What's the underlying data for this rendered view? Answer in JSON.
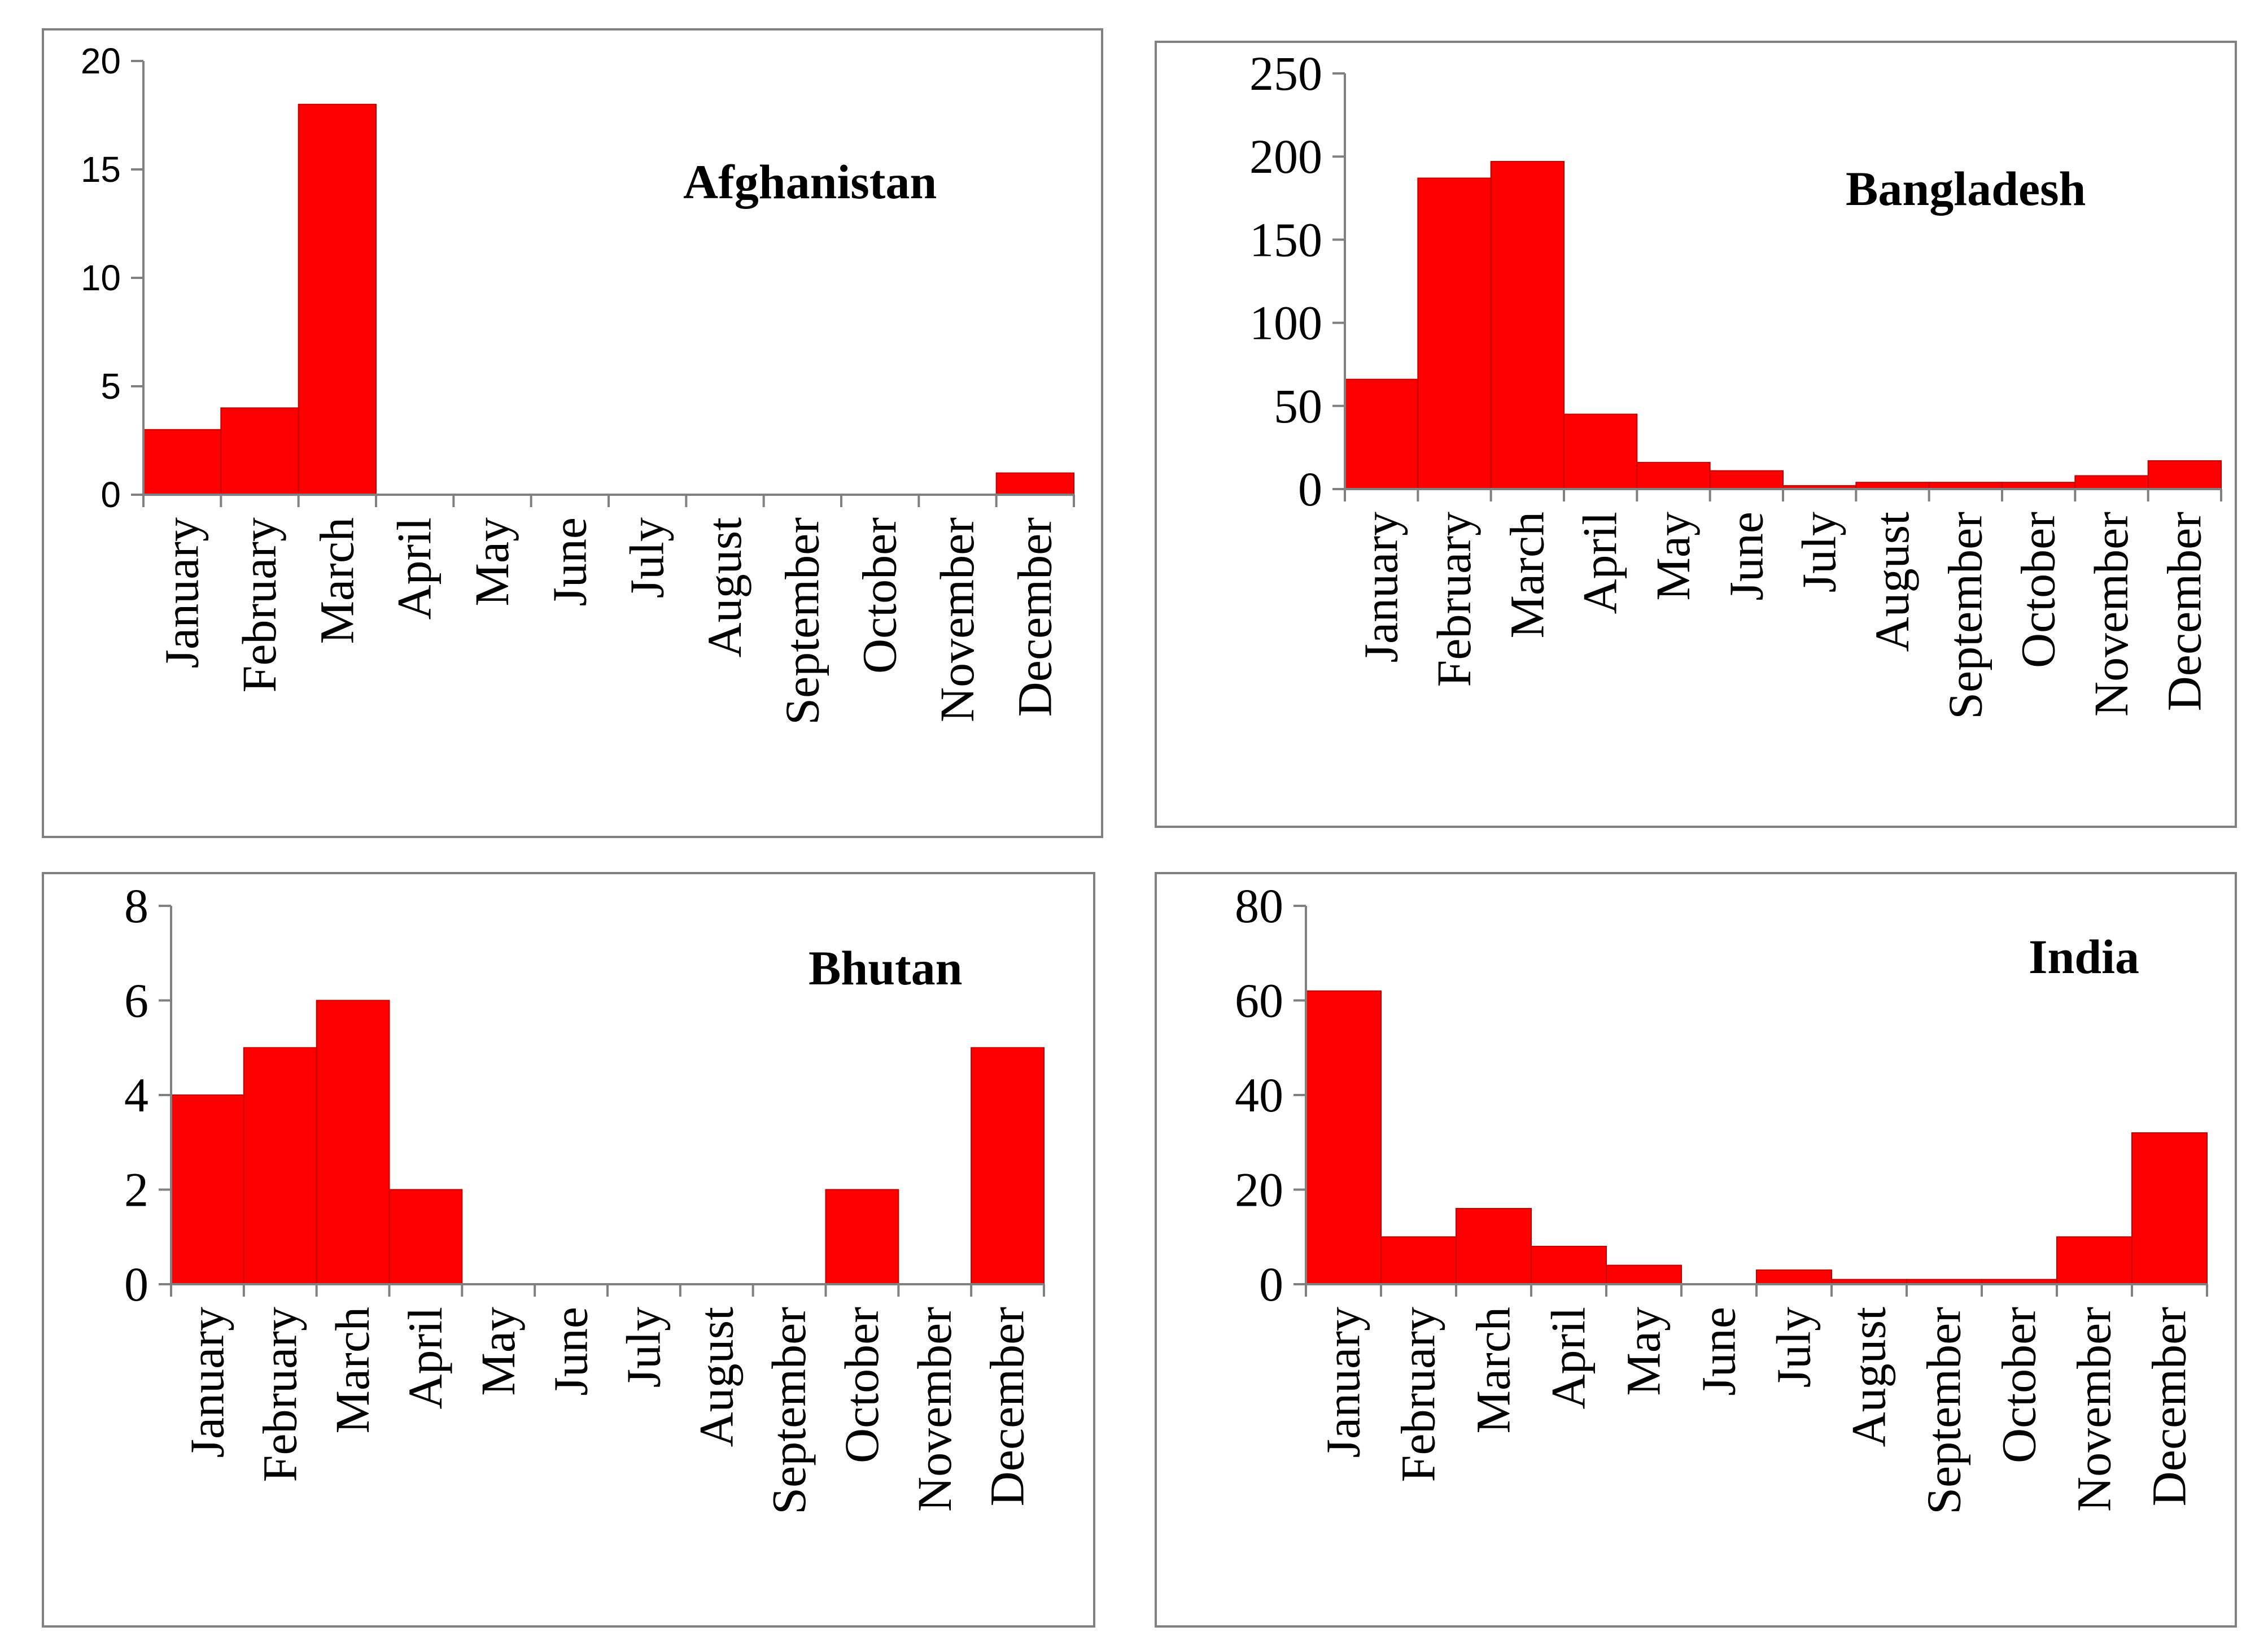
{
  "colors": {
    "bar": "#ff0000",
    "bar_edge": "#c00000",
    "axis": "#808080",
    "text": "#000000"
  },
  "chart_data": [
    {
      "type": "bar",
      "title": "Afghanistan",
      "xlabel": "",
      "ylabel": "",
      "categories": [
        "January",
        "February",
        "March",
        "April",
        "May",
        "June",
        "July",
        "August",
        "September",
        "October",
        "November",
        "December"
      ],
      "values": [
        3,
        4,
        18,
        0,
        0,
        0,
        0,
        0,
        0,
        0,
        0,
        1
      ],
      "ylim": [
        0,
        20
      ],
      "yticks": [
        "0",
        "5",
        "10",
        "15",
        "20"
      ],
      "legend": "none"
    },
    {
      "type": "bar",
      "title": "Bangladesh",
      "xlabel": "",
      "ylabel": "",
      "categories": [
        "January",
        "February",
        "March",
        "April",
        "May",
        "June",
        "July",
        "August",
        "September",
        "October",
        "November",
        "December"
      ],
      "values": [
        66,
        187,
        197,
        45,
        16,
        11,
        2,
        4,
        4,
        4,
        8,
        17
      ],
      "ylim": [
        0,
        250
      ],
      "yticks": [
        "0",
        "50",
        "100",
        "150",
        "200",
        "250"
      ],
      "legend": "none"
    },
    {
      "type": "bar",
      "title": "Bhutan",
      "xlabel": "",
      "ylabel": "",
      "categories": [
        "January",
        "February",
        "March",
        "April",
        "May",
        "June",
        "July",
        "August",
        "September",
        "October",
        "November",
        "December"
      ],
      "values": [
        4,
        5,
        6,
        2,
        0,
        0,
        0,
        0,
        0,
        2,
        0,
        5
      ],
      "ylim": [
        0,
        8
      ],
      "yticks": [
        "0",
        "2",
        "4",
        "6",
        "8"
      ],
      "legend": "none"
    },
    {
      "type": "bar",
      "title": "India",
      "xlabel": "",
      "ylabel": "",
      "categories": [
        "January",
        "February",
        "March",
        "April",
        "May",
        "June",
        "July",
        "August",
        "September",
        "October",
        "November",
        "December"
      ],
      "values": [
        62,
        10,
        16,
        8,
        4,
        0,
        3,
        1,
        1,
        1,
        10,
        32
      ],
      "ylim": [
        0,
        80
      ],
      "yticks": [
        "0",
        "20",
        "40",
        "60",
        "80"
      ],
      "legend": "none"
    }
  ]
}
